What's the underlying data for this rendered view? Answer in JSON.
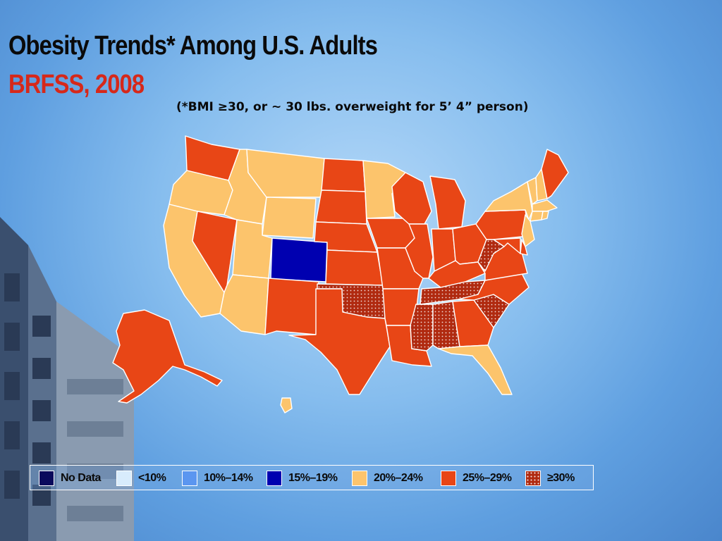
{
  "slide": {
    "title": "Obesity Trends* Among U.S. Adults",
    "subtitle": "BRFSS, 2008",
    "footnote": "(*BMI ≥30, or ~ 30 lbs. overweight for 5’ 4” person)"
  },
  "legend": [
    {
      "label": "No Data",
      "color": "#0a0a5c",
      "dotted": false
    },
    {
      "label": "<10%",
      "color": "#d8ecfc",
      "dotted": false
    },
    {
      "label": "10%–14%",
      "color": "#5b96f0",
      "dotted": false
    },
    {
      "label": "15%–19%",
      "color": "#0000b0",
      "dotted": false
    },
    {
      "label": "20%–24%",
      "color": "#fcc46c",
      "dotted": false
    },
    {
      "label": "25%–29%",
      "color": "#e84616",
      "dotted": false
    },
    {
      "label": "≥30%",
      "color": "#b02a10",
      "dotted": true
    }
  ],
  "map_data": {
    "category_colors": {
      "15-19": "#0000b0",
      "20-24": "#fcc46c",
      "25-29": "#e84616",
      "30plus": "#b02a10"
    },
    "states": {
      "WA": "25-29",
      "OR": "20-24",
      "CA": "20-24",
      "NV": "25-29",
      "ID": "20-24",
      "MT": "20-24",
      "WY": "20-24",
      "UT": "20-24",
      "AZ": "20-24",
      "CO": "15-19",
      "NM": "25-29",
      "ND": "25-29",
      "SD": "25-29",
      "NE": "25-29",
      "KS": "25-29",
      "OK": "30plus",
      "TX": "25-29",
      "MN": "20-24",
      "IA": "25-29",
      "MO": "25-29",
      "AR": "25-29",
      "LA": "25-29",
      "WI": "25-29",
      "IL": "25-29",
      "MI": "25-29",
      "IN": "25-29",
      "OH": "25-29",
      "KY": "25-29",
      "TN": "30plus",
      "MS": "30plus",
      "AL": "30plus",
      "GA": "25-29",
      "FL": "20-24",
      "SC": "30plus",
      "NC": "25-29",
      "VA": "25-29",
      "WV": "30plus",
      "PA": "25-29",
      "NY": "20-24",
      "VT": "20-24",
      "NH": "20-24",
      "ME": "25-29",
      "MA": "20-24",
      "CT": "20-24",
      "RI": "20-24",
      "NJ": "20-24",
      "DE": "25-29",
      "MD": "25-29",
      "AK": "25-29",
      "HI": "20-24"
    }
  }
}
